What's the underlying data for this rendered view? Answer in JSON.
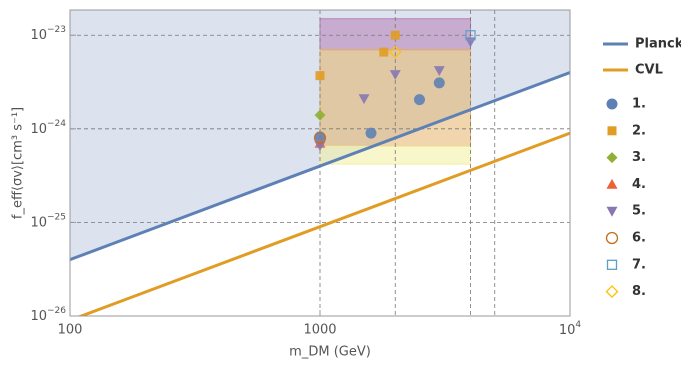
{
  "chart_data": {
    "type": "scatter",
    "log_x": true,
    "log_y": true,
    "x_label": "m_DM (GeV)",
    "y_label": "f_eff⟨σv⟩[cm³ s⁻¹]",
    "xlim": [
      100,
      10000
    ],
    "ylim": [
      1e-26,
      1.86e-23
    ],
    "xticks": [
      100,
      1000,
      {
        "value": 10000,
        "label": "10",
        "exponent": "4"
      }
    ],
    "yticks": [
      {
        "value": 1e-26,
        "label": "10",
        "exponent": "−26"
      },
      {
        "value": 1e-25,
        "label": "10",
        "exponent": "−25"
      },
      {
        "value": 1e-24,
        "label": "10",
        "exponent": "−24"
      },
      {
        "value": 1e-23,
        "label": "10",
        "exponent": "−23"
      }
    ],
    "x_gridlines": [
      1000,
      2000,
      4000,
      5000
    ],
    "y_gridlines": [
      1e-25,
      1e-24,
      1e-23
    ],
    "regions": [
      {
        "x": [
          1000,
          4000
        ],
        "y": [
          7e-24,
          1.5e-23
        ],
        "color": "#b77fb8"
      },
      {
        "x": [
          1000,
          4000
        ],
        "y": [
          6.5e-25,
          7e-24
        ],
        "color": "#e6b36a"
      },
      {
        "x": [
          1000,
          4000
        ],
        "y": [
          4.2e-25,
          6.5e-25
        ],
        "color": "#f3f0a0"
      }
    ],
    "series": [
      {
        "name": "Planck",
        "kind": "line",
        "shade_above": true,
        "color": "#5e81b5",
        "shade_color": "#dce2ee",
        "x": [
          100,
          10000
        ],
        "values": [
          4e-26,
          4e-24
        ]
      },
      {
        "name": "CVL",
        "kind": "line",
        "color": "#e19c24",
        "x": [
          100,
          10000
        ],
        "values": [
          9e-27,
          9e-25
        ]
      },
      {
        "name": "1.",
        "marker": "circle",
        "color": "#5e81b5",
        "x": [
          1000,
          1600,
          2500,
          3000
        ],
        "values": [
          8.2e-25,
          9e-25,
          2.05e-24,
          3.1e-24
        ]
      },
      {
        "name": "2.",
        "marker": "square",
        "color": "#e19c24",
        "x": [
          1000,
          1800,
          2000
        ],
        "values": [
          3.7e-24,
          6.6e-24,
          1e-23
        ]
      },
      {
        "name": "3.",
        "marker": "diamond",
        "color": "#8fb032",
        "x": [
          1000
        ],
        "values": [
          1.4e-24
        ]
      },
      {
        "name": "4.",
        "marker": "triangle",
        "color": "#eb6235",
        "x": [
          1000
        ],
        "values": [
          7e-25
        ]
      },
      {
        "name": "5.",
        "marker": "triangle-down",
        "color": "#8778b3",
        "x": [
          1000,
          1500,
          2000,
          3000,
          4000
        ],
        "values": [
          6.6e-25,
          2.1e-24,
          3.8e-24,
          4.2e-24,
          8.5e-24
        ]
      },
      {
        "name": "6.",
        "marker": "open-circle",
        "color": "#c56e1a",
        "x": [
          1000
        ],
        "values": [
          8e-25
        ]
      },
      {
        "name": "7.",
        "marker": "open-square",
        "color": "#5d9ec7",
        "x": [
          4000
        ],
        "values": [
          1e-23
        ]
      },
      {
        "name": "8.",
        "marker": "open-diamond",
        "color": "#ffbf00",
        "x": [
          2000
        ],
        "values": [
          6.6e-24
        ]
      }
    ]
  }
}
